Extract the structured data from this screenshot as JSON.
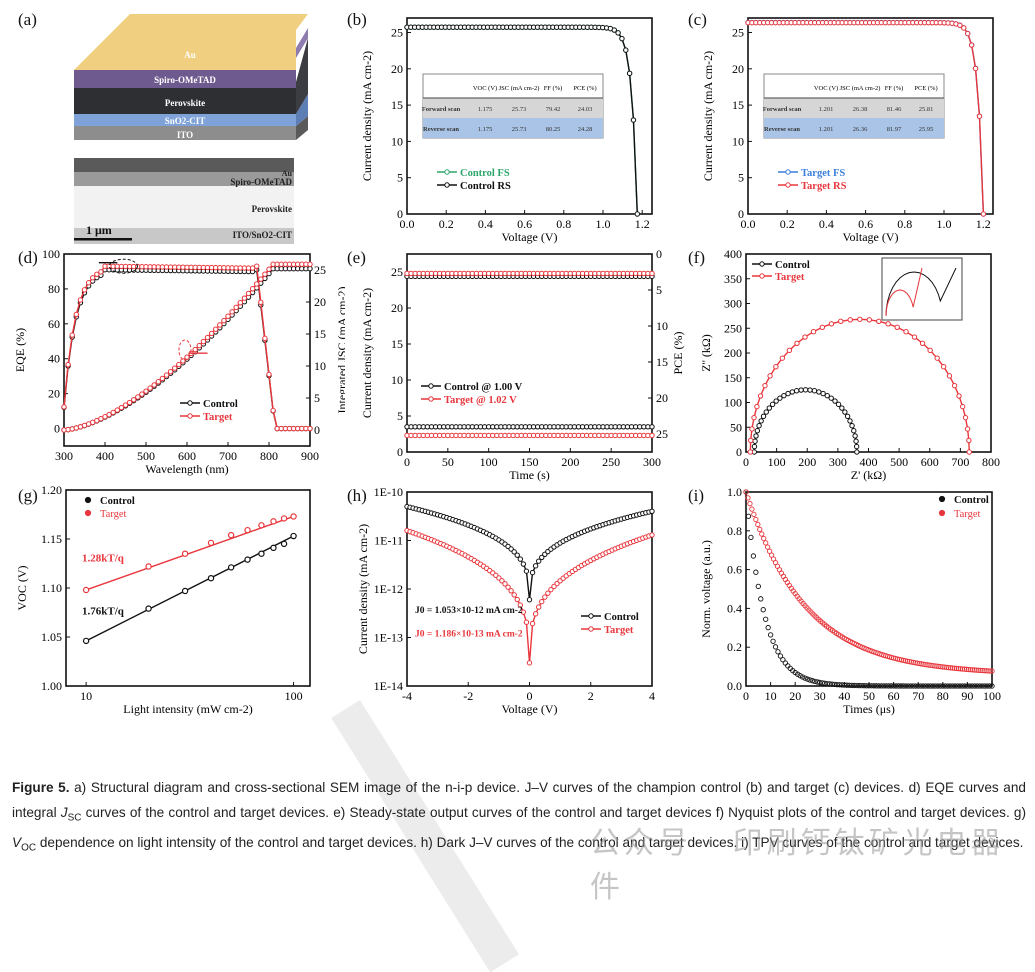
{
  "panel_labels": [
    "(a)",
    "(b)",
    "(c)",
    "(d)",
    "(e)",
    "(f)",
    "(g)",
    "(h)",
    "(i)"
  ],
  "panel_a": {
    "stack_layers": [
      "Au",
      "Spiro-OMeTAD",
      "Perovskite",
      "SnO2-CIT",
      "ITO"
    ],
    "stack_colors": [
      "#f0cf80",
      "#6e5a8e",
      "#2d2f33",
      "#7fa3d8",
      "#8d8d8d"
    ],
    "sem_labels": [
      "Au",
      "Spiro-OMeTAD",
      "Perovskite",
      "ITO/SnO2-CIT"
    ],
    "scale_bar": "1 μm"
  },
  "chart_data": [
    {
      "id": "b",
      "type": "line",
      "title": "",
      "xlabel": "Voltage (V)",
      "ylabel": "Current density (mA cm-2)",
      "xlim": [
        0,
        1.25
      ],
      "ylim": [
        0,
        27
      ],
      "xticks": [
        0.0,
        0.2,
        0.4,
        0.6,
        0.8,
        1.0,
        1.2
      ],
      "yticks": [
        0,
        5,
        10,
        15,
        20,
        25
      ],
      "xtick_labels": [
        "0.0",
        "0.2",
        "0.4",
        "0.6",
        "0.8",
        "1.0",
        "1.2"
      ],
      "legend": "bottom-left",
      "series": [
        {
          "name": "Control FS",
          "color": "#2ca66a",
          "jsc": 25.73,
          "voc": 1.175,
          "ff": 79.42
        },
        {
          "name": "Control RS",
          "color": "#111111",
          "jsc": 25.73,
          "voc": 1.175,
          "ff": 80.25
        }
      ],
      "table": {
        "headers": [
          "",
          "VOC (V)",
          "JSC (mA cm-2)",
          "FF (%)",
          "PCE (%)"
        ],
        "rows": [
          [
            "Forward scan",
            "1.175",
            "25.73",
            "79.42",
            "24.03"
          ],
          [
            "Reverse scan",
            "1.175",
            "25.73",
            "80.25",
            "24.28"
          ]
        ]
      }
    },
    {
      "id": "c",
      "type": "line",
      "title": "",
      "xlabel": "Voltage (V)",
      "ylabel": "Current density (mA cm-2)",
      "xlim": [
        0,
        1.25
      ],
      "ylim": [
        0,
        27
      ],
      "xticks": [
        0.0,
        0.2,
        0.4,
        0.6,
        0.8,
        1.0,
        1.2
      ],
      "yticks": [
        0,
        5,
        10,
        15,
        20,
        25
      ],
      "xtick_labels": [
        "0.0",
        "0.2",
        "0.4",
        "0.6",
        "0.8",
        "1.0",
        "1.2"
      ],
      "legend": "bottom-left",
      "series": [
        {
          "name": "Target FS",
          "color": "#3a7fdc",
          "jsc": 26.38,
          "voc": 1.201,
          "ff": 81.46
        },
        {
          "name": "Target RS",
          "color": "#e8363c",
          "jsc": 26.36,
          "voc": 1.201,
          "ff": 81.97
        }
      ],
      "table": {
        "headers": [
          "",
          "VOC (V)",
          "JSC (mA cm-2)",
          "FF (%)",
          "PCE (%)"
        ],
        "rows": [
          [
            "Forward scan",
            "1.201",
            "26.38",
            "81.46",
            "25.81"
          ],
          [
            "Reverse scan",
            "1.201",
            "26.36",
            "81.97",
            "25.95"
          ]
        ]
      }
    },
    {
      "id": "d",
      "type": "line",
      "title": "",
      "xlabel": "Wavelength (nm)",
      "ylabel": "EQE (%)",
      "ylabel_right": "Integrated JSC (mA cm-2)",
      "xlim": [
        300,
        900
      ],
      "ylim": [
        -10,
        100
      ],
      "ylim_right": [
        -2.5,
        27.5
      ],
      "xticks": [
        300,
        400,
        500,
        600,
        700,
        800,
        900
      ],
      "yticks": [
        0,
        20,
        40,
        60,
        80,
        100
      ],
      "yticks_right": [
        0,
        5,
        10,
        15,
        20,
        25
      ],
      "legend": "bottom-center",
      "series": [
        {
          "name": "Control",
          "color": "#111111",
          "eqe_plateau": 91,
          "jsc_final": 25.2
        },
        {
          "name": "Target",
          "color": "#e8363c",
          "eqe_plateau": 93,
          "jsc_final": 25.9
        }
      ]
    },
    {
      "id": "e",
      "type": "line",
      "title": "",
      "xlabel": "Time (s)",
      "ylabel": "Current density (mA cm-2)",
      "ylabel_right": "PCE (%)",
      "xlim": [
        0,
        300
      ],
      "ylim": [
        0,
        27.5
      ],
      "ylim_right_inverted": [
        0,
        27.5
      ],
      "xticks": [
        0,
        50,
        100,
        150,
        200,
        250,
        300
      ],
      "yticks": [
        0,
        5,
        10,
        15,
        20,
        25
      ],
      "yticks_right": [
        0,
        5,
        10,
        15,
        20,
        25
      ],
      "legend": "center-left",
      "series": [
        {
          "name": "Control @ 1.00 V",
          "color": "#111111",
          "current": 24.4,
          "pce": 24.0
        },
        {
          "name": "Target @ 1.02 V",
          "color": "#e8363c",
          "current": 24.8,
          "pce": 25.2
        }
      ]
    },
    {
      "id": "f",
      "type": "scatter",
      "title": "",
      "xlabel": "Z' (kΩ)",
      "ylabel": "Z'' (kΩ)",
      "xlim": [
        0,
        800
      ],
      "ylim": [
        0,
        400
      ],
      "xticks": [
        0,
        100,
        200,
        300,
        400,
        500,
        600,
        700,
        800
      ],
      "yticks": [
        0,
        50,
        100,
        150,
        200,
        250,
        300,
        350,
        400
      ],
      "legend": "top-left",
      "series": [
        {
          "name": "Control",
          "color": "#111111",
          "rs": 27,
          "rrec": 335
        },
        {
          "name": "Target",
          "color": "#e8363c",
          "rs": 14,
          "rrec": 715
        }
      ]
    },
    {
      "id": "g",
      "type": "scatter",
      "title": "",
      "xlabel": "Light intensity (mW cm-2)",
      "ylabel": "VOC (V)",
      "xscale": "log",
      "xlim": [
        8,
        120
      ],
      "ylim": [
        1.0,
        1.2
      ],
      "xticks": [
        10,
        100
      ],
      "yticks": [
        1.0,
        1.05,
        1.1,
        1.15,
        1.2
      ],
      "legend": "top-left",
      "annotations": [
        "1.28kT/q",
        "1.76kT/q"
      ],
      "series": [
        {
          "name": "Control",
          "color": "#111111",
          "x": [
            10,
            20,
            30,
            40,
            50,
            60,
            70,
            80,
            90,
            100
          ],
          "y": [
            1.046,
            1.079,
            1.097,
            1.11,
            1.121,
            1.129,
            1.135,
            1.141,
            1.145,
            1.153
          ]
        },
        {
          "name": "Target",
          "color": "#e8363c",
          "x": [
            10,
            20,
            30,
            40,
            50,
            60,
            70,
            80,
            90,
            100
          ],
          "y": [
            1.098,
            1.122,
            1.135,
            1.146,
            1.154,
            1.159,
            1.164,
            1.168,
            1.171,
            1.173
          ]
        }
      ]
    },
    {
      "id": "h",
      "type": "line",
      "title": "",
      "xlabel": "Voltage (V)",
      "ylabel": "Current density (mA cm-2)",
      "yscale": "log",
      "xlim": [
        -4,
        4
      ],
      "ylim": [
        1e-14,
        1e-10
      ],
      "xticks": [
        -4,
        -2,
        0,
        2,
        4
      ],
      "yticks": [
        "1E-14",
        "1E-13",
        "1E-12",
        "1E-11",
        "1E-10"
      ],
      "legend": "center-right",
      "annotations": [
        "J0 = 1.053×10-12 mA cm-2",
        "J0 = 1.186×10-13 mA cm-2"
      ],
      "series": [
        {
          "name": "Control",
          "color": "#111111",
          "left": 5e-11,
          "right": 4e-11,
          "min": 6e-13
        },
        {
          "name": "Target",
          "color": "#e8363c",
          "left": 1.6e-11,
          "right": 1.3e-11,
          "min": 3e-14
        }
      ]
    },
    {
      "id": "i",
      "type": "scatter",
      "title": "",
      "xlabel": "Times (μs)",
      "ylabel": "Norm. voltage (a.u.)",
      "xlim": [
        0,
        100
      ],
      "ylim": [
        0,
        1.0
      ],
      "xticks": [
        0,
        10,
        20,
        30,
        40,
        50,
        60,
        70,
        80,
        90,
        100
      ],
      "yticks": [
        0.0,
        0.2,
        0.4,
        0.6,
        0.8,
        1.0
      ],
      "legend": "top-right",
      "series": [
        {
          "name": "Control",
          "color": "#111111",
          "tau": 7.5
        },
        {
          "name": "Target",
          "color": "#e8363c",
          "tau": 24
        }
      ]
    }
  ],
  "caption": {
    "label": "Figure 5.",
    "text_html_parts": [
      " a) Structural diagram and cross-sectional SEM image of the n-i-p device. J–V curves of the champion control (b) and target (c) devices. d) EQE curves and integral ",
      "J",
      "SC",
      " curves of the control and target devices. e) Steady-state output curves of the control and target devices f) Nyquist plots of the control and target devices. g) ",
      "V",
      "OC",
      " dependence on light intensity of the control and target devices. h) Dark J–V curves of the control and target devices. i) TPV curves of the control and target devices."
    ]
  },
  "watermark": "公众号 · 印刷钙钛矿光电器件"
}
